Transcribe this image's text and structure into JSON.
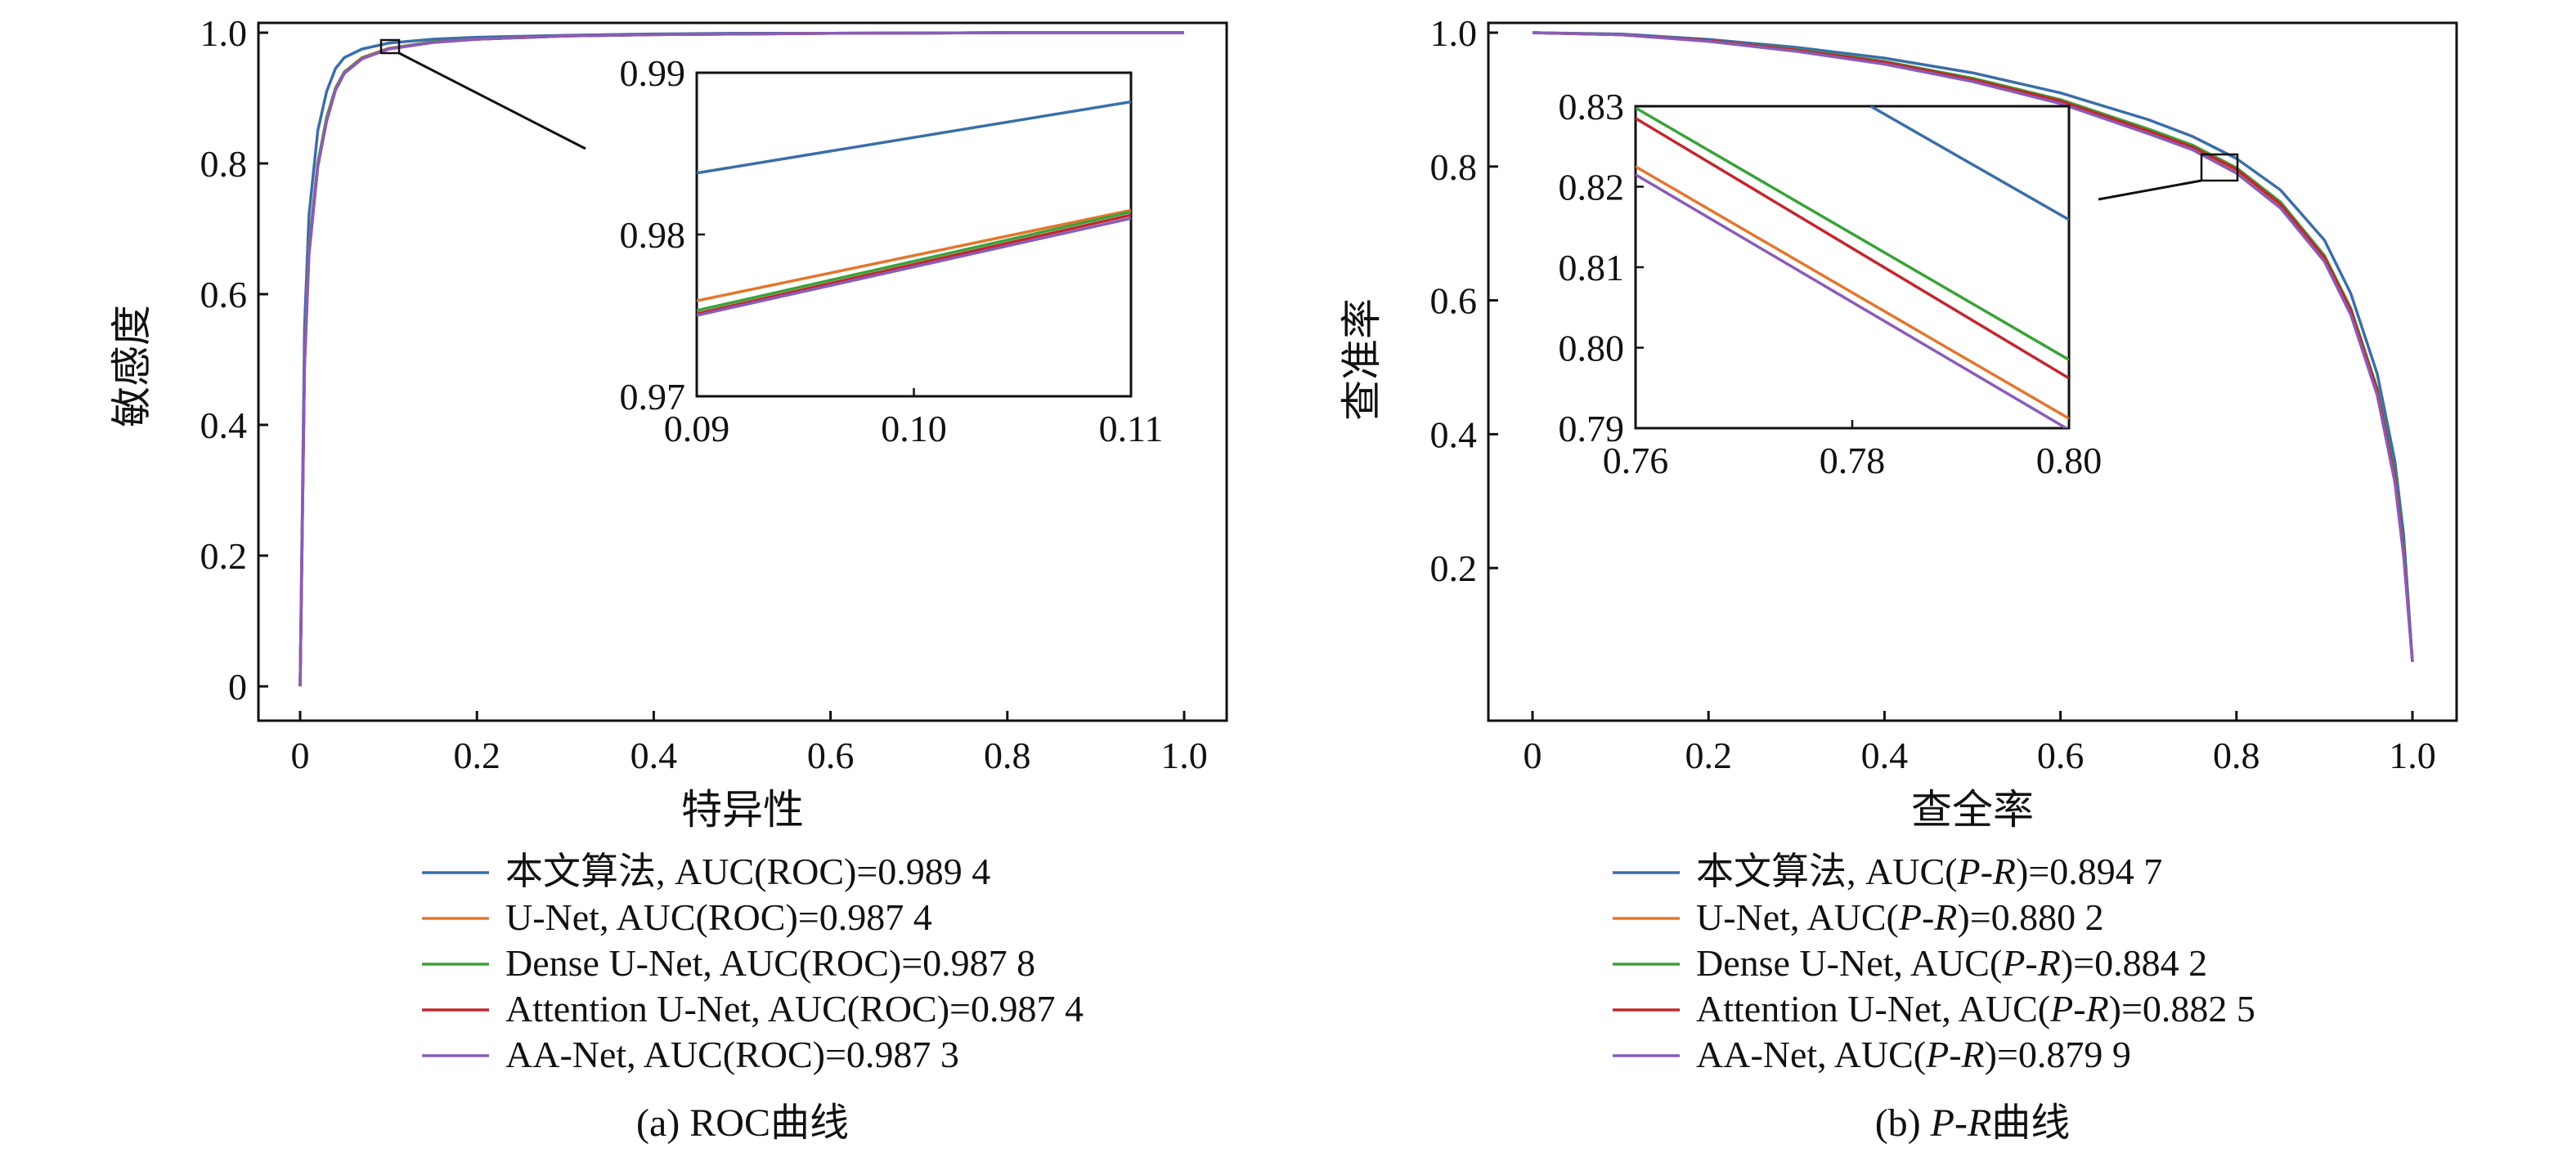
{
  "colors": {
    "blue": "#3b6ea8",
    "orange": "#e3762d",
    "green": "#3aa23a",
    "red": "#c0282e",
    "purple": "#8a5cb8"
  },
  "chart_data": [
    {
      "type": "line",
      "caption": "(a) ROC曲线",
      "xlabel": "特异性",
      "ylabel": "敏感度",
      "xlim": [
        0,
        1.0
      ],
      "ylim": [
        0,
        1.0
      ],
      "xticks": [
        "0",
        "0.2",
        "0.4",
        "0.6",
        "0.8",
        "1.0"
      ],
      "yticks": [
        "0",
        "0.2",
        "0.4",
        "0.6",
        "0.8",
        "1.0"
      ],
      "series": [
        {
          "name": "本文算法, AUC(ROC)=0.989 4",
          "color": "blue",
          "x": [
            0,
            0.005,
            0.01,
            0.02,
            0.03,
            0.04,
            0.05,
            0.07,
            0.1,
            0.15,
            0.2,
            0.3,
            0.4,
            0.5,
            0.6,
            0.8,
            1.0
          ],
          "y": [
            0,
            0.55,
            0.72,
            0.85,
            0.91,
            0.945,
            0.962,
            0.975,
            0.984,
            0.99,
            0.993,
            0.996,
            0.998,
            0.999,
            0.999,
            1.0,
            1.0
          ]
        },
        {
          "name": "U-Net, AUC(ROC)=0.987 4",
          "color": "orange",
          "x": [
            0,
            0.005,
            0.01,
            0.02,
            0.03,
            0.04,
            0.05,
            0.07,
            0.1,
            0.15,
            0.2,
            0.3,
            0.4,
            0.5,
            0.6,
            0.8,
            1.0
          ],
          "y": [
            0,
            0.5,
            0.67,
            0.8,
            0.87,
            0.915,
            0.94,
            0.962,
            0.976,
            0.986,
            0.99,
            0.995,
            0.997,
            0.998,
            0.999,
            1.0,
            1.0
          ]
        },
        {
          "name": "Dense U-Net, AUC(ROC)=0.987 8",
          "color": "green",
          "x": [
            0,
            0.005,
            0.01,
            0.02,
            0.03,
            0.04,
            0.05,
            0.07,
            0.1,
            0.15,
            0.2,
            0.3,
            0.4,
            0.5,
            0.6,
            0.8,
            1.0
          ],
          "y": [
            0,
            0.5,
            0.67,
            0.8,
            0.87,
            0.915,
            0.94,
            0.961,
            0.9755,
            0.986,
            0.99,
            0.995,
            0.997,
            0.998,
            0.999,
            1.0,
            1.0
          ]
        },
        {
          "name": "Attention U-Net, AUC(ROC)=0.987 4",
          "color": "red",
          "x": [
            0,
            0.005,
            0.01,
            0.02,
            0.03,
            0.04,
            0.05,
            0.07,
            0.1,
            0.15,
            0.2,
            0.3,
            0.4,
            0.5,
            0.6,
            0.8,
            1.0
          ],
          "y": [
            0,
            0.49,
            0.66,
            0.795,
            0.865,
            0.912,
            0.938,
            0.96,
            0.975,
            0.985,
            0.99,
            0.995,
            0.997,
            0.998,
            0.999,
            1.0,
            1.0
          ]
        },
        {
          "name": "AA-Net, AUC(ROC)=0.987 3",
          "color": "purple",
          "x": [
            0,
            0.005,
            0.01,
            0.02,
            0.03,
            0.04,
            0.05,
            0.07,
            0.1,
            0.15,
            0.2,
            0.3,
            0.4,
            0.5,
            0.6,
            0.8,
            1.0
          ],
          "y": [
            0,
            0.49,
            0.66,
            0.795,
            0.865,
            0.912,
            0.938,
            0.96,
            0.975,
            0.985,
            0.99,
            0.995,
            0.997,
            0.998,
            0.999,
            1.0,
            1.0
          ]
        }
      ],
      "inset": {
        "xlim": [
          0.09,
          0.11
        ],
        "ylim": [
          0.97,
          0.99
        ],
        "xticks": [
          "0.09",
          "0.10",
          "0.11"
        ],
        "yticks": [
          "0.97",
          "0.98",
          "0.99"
        ],
        "series": [
          {
            "color": "blue",
            "x": [
              0.09,
              0.11
            ],
            "y": [
              0.9838,
              0.9882
            ]
          },
          {
            "color": "orange",
            "x": [
              0.09,
              0.11
            ],
            "y": [
              0.9759,
              0.9815
            ]
          },
          {
            "color": "green",
            "x": [
              0.09,
              0.11
            ],
            "y": [
              0.9753,
              0.9814
            ]
          },
          {
            "color": "red",
            "x": [
              0.09,
              0.11
            ],
            "y": [
              0.9751,
              0.9812
            ]
          },
          {
            "color": "purple",
            "x": [
              0.09,
              0.11
            ],
            "y": [
              0.975,
              0.981
            ]
          }
        ]
      }
    },
    {
      "type": "line",
      "caption": "(b) P-R曲线",
      "xlabel": "查全率",
      "ylabel": "查准率",
      "xlim": [
        0,
        1.0
      ],
      "ylim": [
        0,
        1.0
      ],
      "xticks": [
        "0",
        "0.2",
        "0.4",
        "0.6",
        "0.8",
        "1.0"
      ],
      "yticks": [
        "0.2",
        "0.4",
        "0.6",
        "0.8",
        "1.0"
      ],
      "series": [
        {
          "name": "本文算法, AUC(P-R)=0.894 7",
          "color": "blue",
          "x": [
            0,
            0.1,
            0.2,
            0.3,
            0.4,
            0.5,
            0.6,
            0.7,
            0.75,
            0.8,
            0.85,
            0.9,
            0.93,
            0.96,
            0.98,
            0.99,
            1.0
          ],
          "y": [
            1.0,
            0.998,
            0.99,
            0.978,
            0.962,
            0.94,
            0.91,
            0.87,
            0.845,
            0.812,
            0.765,
            0.69,
            0.61,
            0.49,
            0.36,
            0.25,
            0.06
          ]
        },
        {
          "name": "U-Net, AUC(P-R)=0.880 2",
          "color": "orange",
          "x": [
            0,
            0.1,
            0.2,
            0.3,
            0.4,
            0.5,
            0.6,
            0.7,
            0.75,
            0.8,
            0.85,
            0.9,
            0.93,
            0.96,
            0.98,
            0.99,
            1.0
          ],
          "y": [
            1.0,
            0.997,
            0.987,
            0.973,
            0.954,
            0.928,
            0.895,
            0.85,
            0.826,
            0.792,
            0.74,
            0.66,
            0.58,
            0.46,
            0.33,
            0.22,
            0.06
          ]
        },
        {
          "name": "Dense U-Net, AUC(P-R)=0.884 2",
          "color": "green",
          "x": [
            0,
            0.1,
            0.2,
            0.3,
            0.4,
            0.5,
            0.6,
            0.7,
            0.75,
            0.8,
            0.85,
            0.9,
            0.93,
            0.96,
            0.98,
            0.99,
            1.0
          ],
          "y": [
            1.0,
            0.997,
            0.988,
            0.975,
            0.957,
            0.932,
            0.9,
            0.856,
            0.832,
            0.798,
            0.747,
            0.667,
            0.588,
            0.468,
            0.34,
            0.23,
            0.06
          ]
        },
        {
          "name": "Attention U-Net, AUC(P-R)=0.882 5",
          "color": "red",
          "x": [
            0,
            0.1,
            0.2,
            0.3,
            0.4,
            0.5,
            0.6,
            0.7,
            0.75,
            0.8,
            0.85,
            0.9,
            0.93,
            0.96,
            0.98,
            0.99,
            1.0
          ],
          "y": [
            1.0,
            0.997,
            0.988,
            0.974,
            0.956,
            0.93,
            0.898,
            0.853,
            0.829,
            0.796,
            0.744,
            0.664,
            0.585,
            0.465,
            0.335,
            0.225,
            0.06
          ]
        },
        {
          "name": "AA-Net, AUC(P-R)=0.879 9",
          "color": "purple",
          "x": [
            0,
            0.1,
            0.2,
            0.3,
            0.4,
            0.5,
            0.6,
            0.7,
            0.75,
            0.8,
            0.85,
            0.9,
            0.93,
            0.96,
            0.98,
            0.99,
            1.0
          ],
          "y": [
            1.0,
            0.997,
            0.987,
            0.972,
            0.953,
            0.927,
            0.894,
            0.849,
            0.825,
            0.79,
            0.738,
            0.658,
            0.578,
            0.458,
            0.328,
            0.218,
            0.06
          ]
        }
      ],
      "inset": {
        "xlim": [
          0.76,
          0.8
        ],
        "ylim": [
          0.79,
          0.83
        ],
        "xticks": [
          "0.76",
          "0.78",
          "0.80"
        ],
        "yticks": [
          "0.79",
          "0.80",
          "0.81",
          "0.82",
          "0.83"
        ],
        "series": [
          {
            "color": "blue",
            "x": [
              0.7817,
              0.8
            ],
            "y": [
              0.83,
              0.8159
            ]
          },
          {
            "color": "orange",
            "x": [
              0.76,
              0.8
            ],
            "y": [
              0.8225,
              0.7912
            ]
          },
          {
            "color": "green",
            "x": [
              0.76,
              0.8
            ],
            "y": [
              0.8298,
              0.7985
            ]
          },
          {
            "color": "red",
            "x": [
              0.76,
              0.8
            ],
            "y": [
              0.8285,
              0.7962
            ]
          },
          {
            "color": "purple",
            "x": [
              0.76,
              0.8
            ],
            "y": [
              0.8215,
              0.7898
            ]
          }
        ]
      }
    }
  ]
}
